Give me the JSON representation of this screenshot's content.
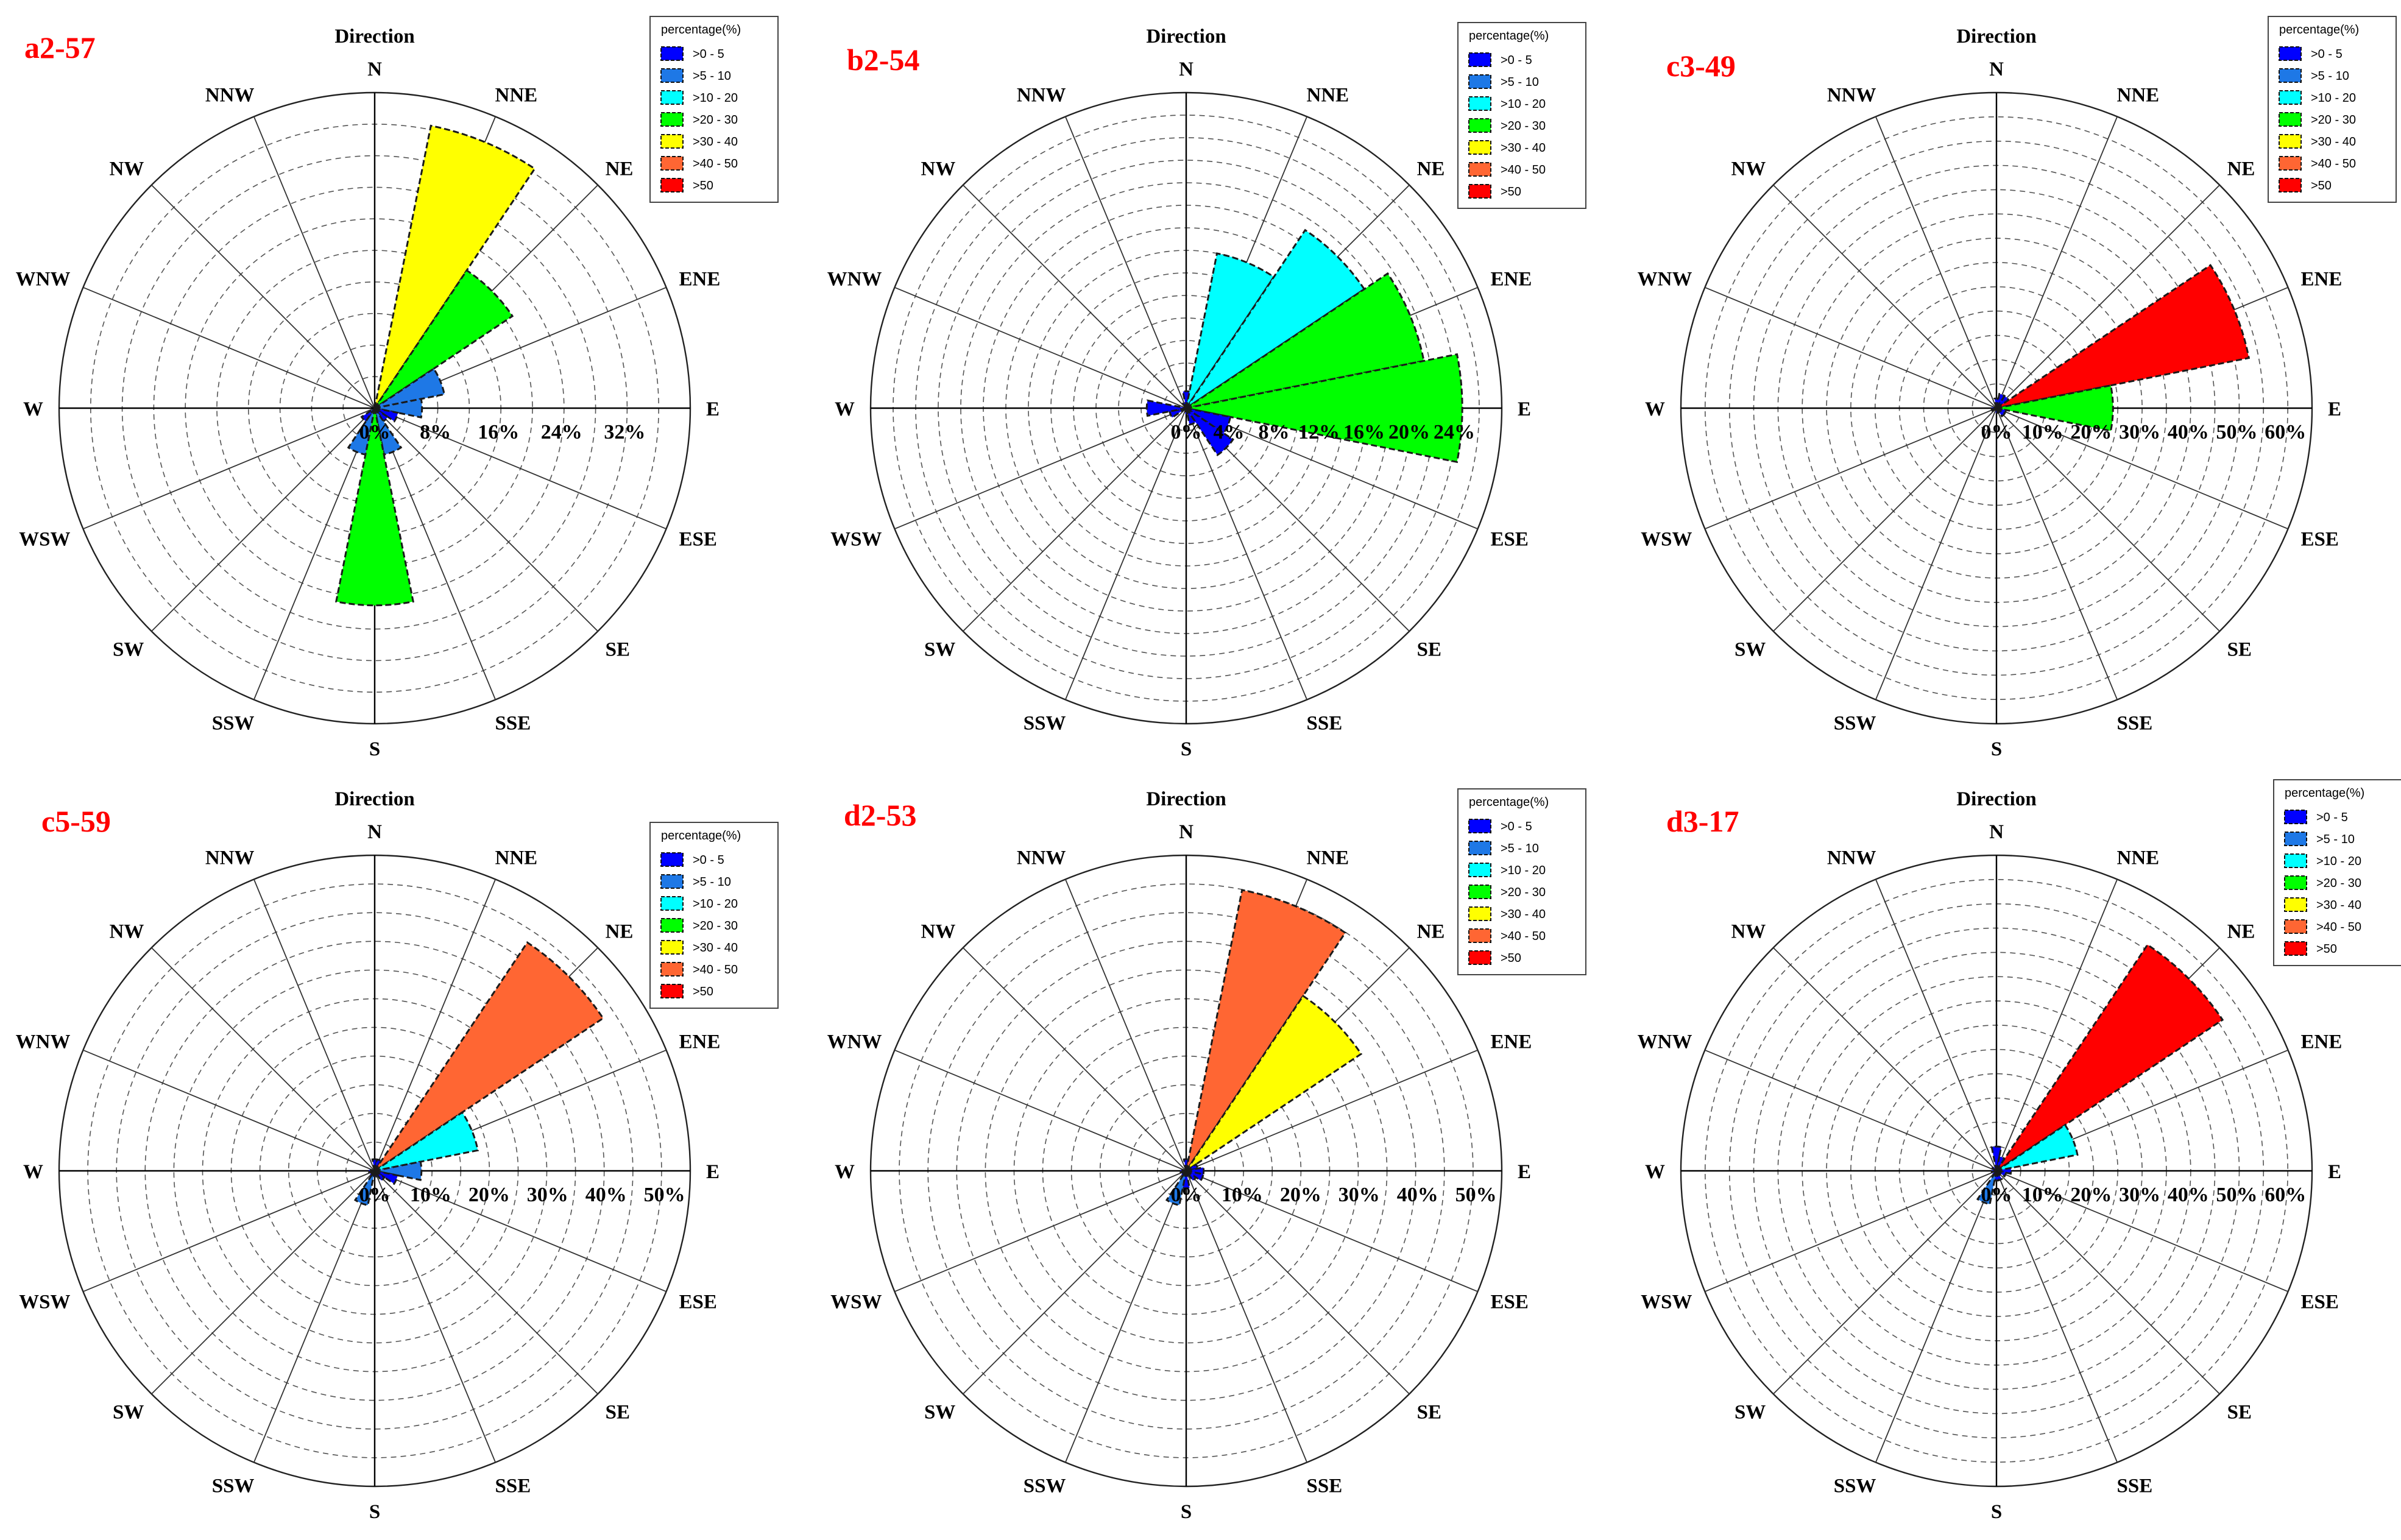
{
  "figure": {
    "axis_title": "Direction",
    "directions": [
      "N",
      "NNE",
      "NE",
      "ENE",
      "E",
      "ESE",
      "SE",
      "SSE",
      "S",
      "SSW",
      "SW",
      "WSW",
      "W",
      "WNW",
      "NW",
      "NNW"
    ],
    "legend": {
      "title": "percentage(%)",
      "entries": [
        ">0 - 5",
        ">5 - 10",
        ">10 - 20",
        ">20 - 30",
        ">30 - 40",
        ">40 - 50",
        ">50"
      ],
      "colors": [
        "#0000ff",
        "#1e78e6",
        "#00ffff",
        "#00ff00",
        "#ffff00",
        "#ff6633",
        "#ff0000"
      ]
    }
  },
  "chart_data": [
    {
      "type": "polar-bar",
      "panel_label": "a2-57",
      "title": "Direction",
      "rmax": 40,
      "tick_labels": [
        "0%",
        "8%",
        "16%",
        "24%",
        "32%"
      ],
      "tick_values": [
        0,
        8,
        16,
        24,
        32
      ],
      "directions": [
        "N",
        "NNE",
        "NE",
        "ENE",
        "E",
        "ESE",
        "SE",
        "SSE",
        "S",
        "SSW",
        "SW",
        "WSW",
        "W",
        "WNW",
        "NW",
        "NNW"
      ],
      "values": [
        0,
        36.5,
        21,
        9,
        6,
        3,
        2,
        6,
        25,
        6,
        2,
        0,
        0,
        0,
        0,
        0
      ]
    },
    {
      "type": "polar-bar",
      "panel_label": "b2-54",
      "title": "Direction",
      "rmax": 28,
      "tick_labels": [
        "0%",
        "4%",
        "8%",
        "12%",
        "16%",
        "20%",
        "24%"
      ],
      "tick_values": [
        0,
        4,
        8,
        12,
        16,
        20,
        24
      ],
      "directions": [
        "N",
        "NNE",
        "NE",
        "ENE",
        "E",
        "ESE",
        "SE",
        "SSE",
        "S",
        "SSW",
        "SW",
        "WSW",
        "W",
        "WNW",
        "NW",
        "NNW"
      ],
      "values": [
        1.5,
        14,
        19,
        21.5,
        24.5,
        4,
        5,
        1.5,
        0.5,
        0,
        0,
        1.5,
        3.5,
        0,
        0,
        0.5
      ]
    },
    {
      "type": "polar-bar",
      "panel_label": "c3-49",
      "title": "Direction",
      "rmax": 65,
      "tick_labels": [
        "0%",
        "10%",
        "20%",
        "30%",
        "40%",
        "50%",
        "60%"
      ],
      "tick_values": [
        0,
        10,
        20,
        30,
        40,
        50,
        60
      ],
      "directions": [
        "N",
        "NNE",
        "NE",
        "ENE",
        "E",
        "ESE",
        "SE",
        "SSE",
        "S",
        "SSW",
        "SW",
        "WSW",
        "W",
        "WNW",
        "NW",
        "NNW"
      ],
      "values": [
        2,
        3,
        3,
        53,
        24,
        2,
        2,
        1,
        1,
        0,
        0,
        1,
        1,
        0,
        0,
        0
      ]
    },
    {
      "type": "polar-bar",
      "panel_label": "c5-59",
      "title": "Direction",
      "rmax": 54,
      "tick_labels": [
        "0%",
        "10%",
        "20%",
        "30%",
        "40%",
        "50%"
      ],
      "tick_values": [
        0,
        10,
        20,
        30,
        40,
        50
      ],
      "directions": [
        "N",
        "NNE",
        "NE",
        "ENE",
        "E",
        "ESE",
        "SE",
        "SSE",
        "S",
        "SSW",
        "SW",
        "WSW",
        "W",
        "WNW",
        "NW",
        "NNW"
      ],
      "values": [
        2,
        2,
        47,
        18,
        8,
        4,
        2,
        1,
        1,
        6,
        1,
        0,
        1,
        0,
        0,
        0
      ]
    },
    {
      "type": "polar-bar",
      "panel_label": "d2-53",
      "title": "Direction",
      "rmax": 54,
      "tick_labels": [
        "0%",
        "10%",
        "20%",
        "30%",
        "40%",
        "50%"
      ],
      "tick_values": [
        0,
        10,
        20,
        30,
        40,
        50
      ],
      "directions": [
        "N",
        "NNE",
        "NE",
        "ENE",
        "E",
        "ESE",
        "SE",
        "SSE",
        "S",
        "SSW",
        "SW",
        "WSW",
        "W",
        "WNW",
        "NW",
        "NNW"
      ],
      "values": [
        2,
        49,
        36,
        2,
        3,
        3,
        2,
        1,
        3,
        6,
        1,
        0,
        1,
        0,
        0,
        0
      ]
    },
    {
      "type": "polar-bar",
      "panel_label": "d3-17",
      "title": "Direction",
      "rmax": 65,
      "tick_labels": [
        "0%",
        "10%",
        "20%",
        "30%",
        "40%",
        "50%",
        "60%"
      ],
      "tick_values": [
        0,
        10,
        20,
        30,
        40,
        50,
        60
      ],
      "directions": [
        "N",
        "NNE",
        "NE",
        "ENE",
        "E",
        "ESE",
        "SE",
        "SSE",
        "S",
        "SSW",
        "SW",
        "WSW",
        "W",
        "WNW",
        "NW",
        "NNW"
      ],
      "values": [
        5,
        3,
        56,
        17,
        3,
        2,
        1,
        2,
        2,
        7,
        1,
        0,
        1,
        0,
        1,
        0
      ]
    }
  ]
}
